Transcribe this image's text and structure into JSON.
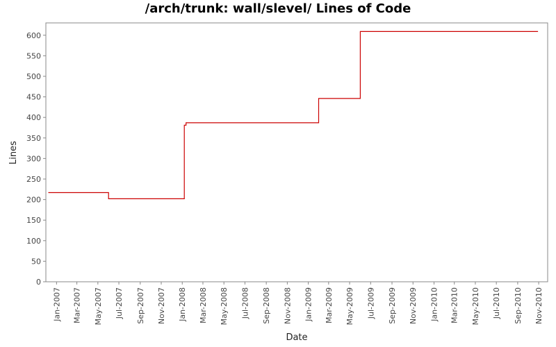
{
  "chart_data": {
    "type": "line",
    "title": "/arch/trunk: wall/slevel/ Lines of Code",
    "xlabel": "Date",
    "ylabel": "Lines",
    "x_tick_labels": [
      "Jan-2007",
      "Mar-2007",
      "May-2007",
      "Jul-2007",
      "Sep-2007",
      "Nov-2007",
      "Jan-2008",
      "Mar-2008",
      "May-2008",
      "Jul-2008",
      "Sep-2008",
      "Nov-2008",
      "Jan-2009",
      "Mar-2009",
      "May-2009",
      "Jul-2009",
      "Sep-2009",
      "Nov-2009",
      "Jan-2010",
      "Mar-2010",
      "May-2010",
      "Jul-2010",
      "Sep-2010",
      "Nov-2010"
    ],
    "y_ticks": [
      0,
      50,
      100,
      150,
      200,
      250,
      300,
      350,
      400,
      450,
      500,
      550,
      600
    ],
    "ylim": [
      0,
      630
    ],
    "xlim": [
      "2006-12-01",
      "2010-11-27"
    ],
    "grid": false,
    "line_color": "#cc0000",
    "series": [
      {
        "step": true,
        "points": [
          {
            "x": "2006-12-08",
            "y": 217
          },
          {
            "x": "2007-06-01",
            "y": 217
          },
          {
            "x": "2007-06-01",
            "y": 202
          },
          {
            "x": "2008-01-07",
            "y": 202
          },
          {
            "x": "2008-01-07",
            "y": 381
          },
          {
            "x": "2008-01-12",
            "y": 381
          },
          {
            "x": "2008-01-12",
            "y": 387
          },
          {
            "x": "2009-01-31",
            "y": 387
          },
          {
            "x": "2009-01-31",
            "y": 446
          },
          {
            "x": "2009-06-01",
            "y": 446
          },
          {
            "x": "2009-06-01",
            "y": 609
          },
          {
            "x": "2010-10-30",
            "y": 609
          }
        ]
      }
    ]
  }
}
